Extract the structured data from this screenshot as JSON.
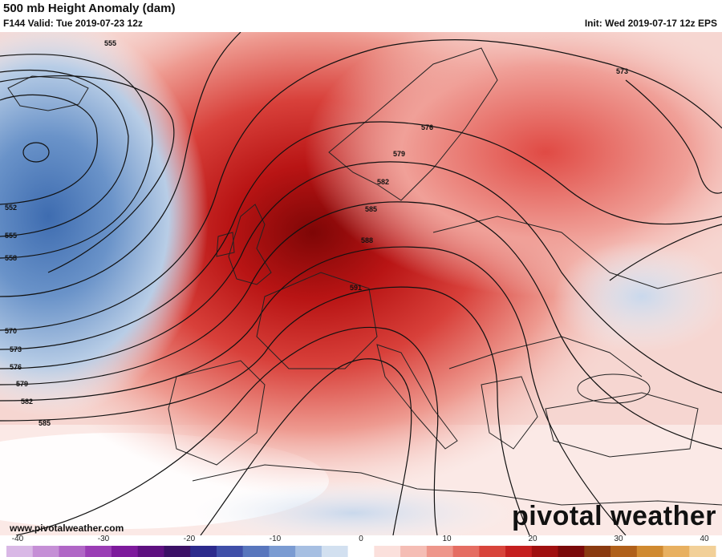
{
  "header": {
    "title": "500 mb Height Anomaly (dam)",
    "valid": "F144 Valid: Tue 2019-07-23 12z",
    "init": "Init: Wed 2019-07-17 12z EPS"
  },
  "footer": {
    "website": "www.pivotalweather.com",
    "brand": "pivotal weather"
  },
  "contour_labels": [
    "555",
    "573",
    "576",
    "579",
    "582",
    "585",
    "588",
    "591",
    "552",
    "555",
    "558",
    "570",
    "573",
    "576",
    "579",
    "582",
    "585"
  ],
  "colorbar": {
    "ticks": [
      "-40",
      "-30",
      "-20",
      "-10",
      "0",
      "10",
      "20",
      "30",
      "40"
    ],
    "colors": [
      "#d9b8e6",
      "#c58fd6",
      "#b066c6",
      "#9a3db5",
      "#7d1a9c",
      "#5e1080",
      "#3b1066",
      "#2c2a8c",
      "#3f4fa8",
      "#5876bd",
      "#7a9bd2",
      "#a6bfe2",
      "#d2e0f0",
      "#ffffff",
      "#fbe0dc",
      "#f5bdb5",
      "#ee968b",
      "#e56d62",
      "#d8443b",
      "#c41f1f",
      "#a01010",
      "#7a0a0a",
      "#8a3a10",
      "#b0601a",
      "#d08a30",
      "#e8b060",
      "#f2d098"
    ]
  },
  "colors": {
    "high_center": "#8a0a0a",
    "high_core": "#c41a1a",
    "high_mid": "#e35a52",
    "high_edge": "#f4b8b0",
    "low_center": "#4a77b6",
    "low_mid": "#8aaed6",
    "low_edge": "#d4e2f1",
    "contour": "#111111",
    "border": "#222222"
  }
}
